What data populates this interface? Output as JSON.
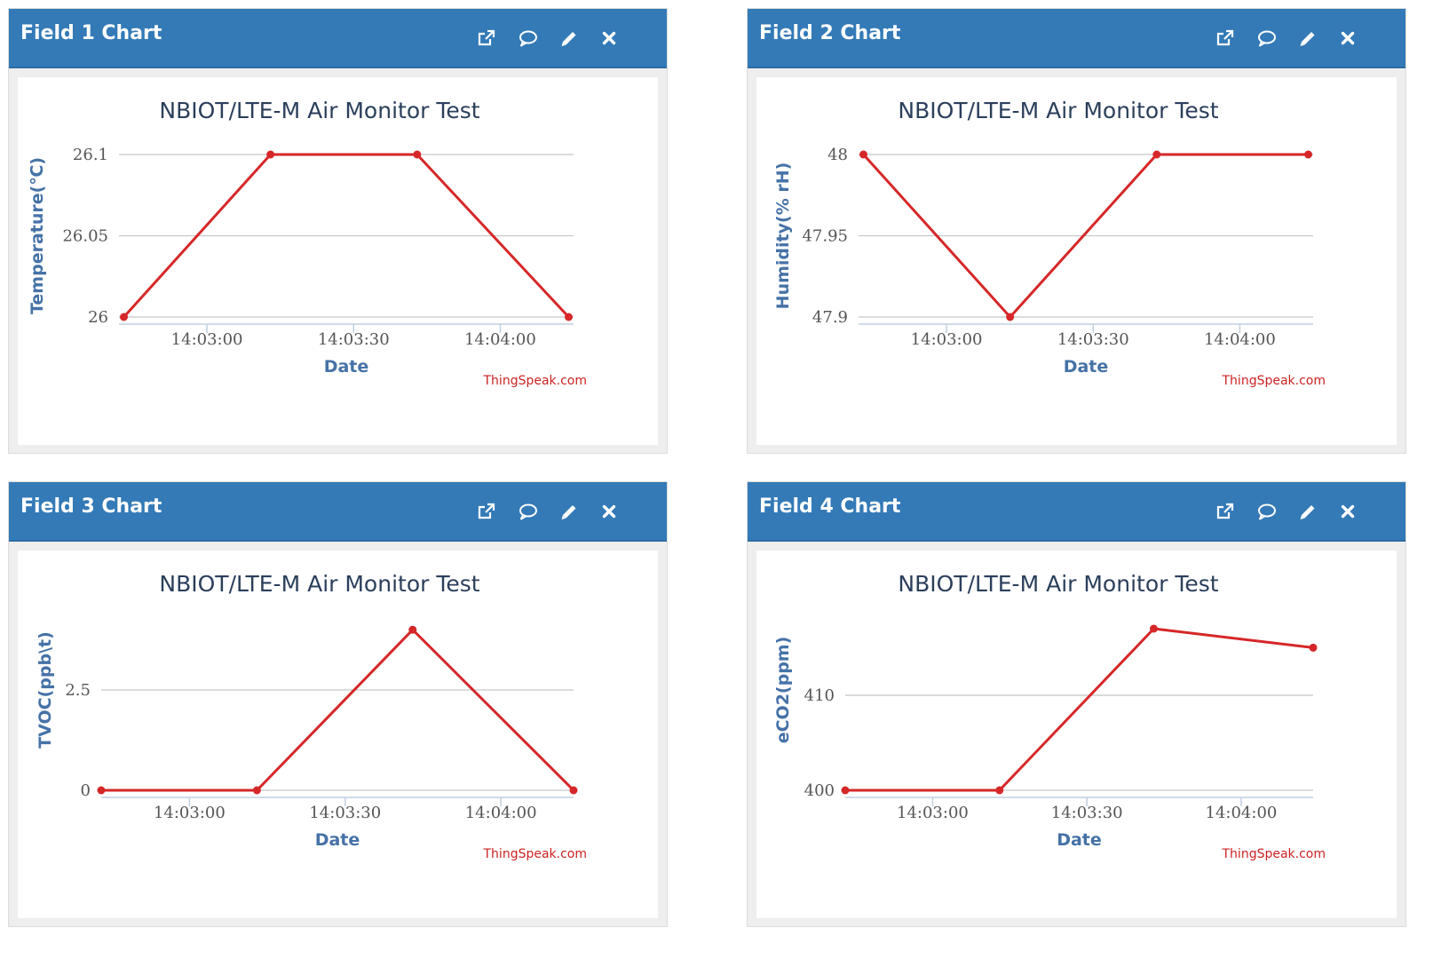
{
  "theme": {
    "header_color": "#337ab7",
    "line_color": "#d62728",
    "label_color": "#4572a7",
    "credits_color": "#cc2222"
  },
  "toolbar_icons": [
    "external-link-icon",
    "comment-icon",
    "pencil-icon",
    "close-icon"
  ],
  "panels": [
    {
      "title": "Field 1 Chart",
      "chart_data": {
        "type": "line",
        "title": "NBIOT/LTE-M Air Monitor Test",
        "xlabel": "Date",
        "ylabel": "Temperature(℃)",
        "credits": "ThingSpeak.com",
        "x_range": [
          "14:02:42",
          "14:04:15"
        ],
        "y_range": [
          26,
          26.1
        ],
        "yticks": [
          {
            "value": 26,
            "label": "26"
          },
          {
            "value": 26.05,
            "label": "26.05"
          },
          {
            "value": 26.1,
            "label": "26.1"
          }
        ],
        "xticks": [
          {
            "value": "14:03:00",
            "label": "14:03:00"
          },
          {
            "value": "14:03:30",
            "label": "14:03:30"
          },
          {
            "value": "14:04:00",
            "label": "14:04:00"
          }
        ],
        "series": [
          {
            "x": [
              "14:02:43",
              "14:03:13",
              "14:03:43",
              "14:04:14"
            ],
            "y": [
              26,
              26.1,
              26.1,
              26
            ]
          }
        ],
        "grid": true,
        "legend": "none"
      }
    },
    {
      "title": "Field 2 Chart",
      "chart_data": {
        "type": "line",
        "title": "NBIOT/LTE-M Air Monitor Test",
        "xlabel": "Date",
        "ylabel": "Humidity(% rH)",
        "credits": "ThingSpeak.com",
        "x_range": [
          "14:02:42",
          "14:04:15"
        ],
        "y_range": [
          47.9,
          48
        ],
        "yticks": [
          {
            "value": 47.9,
            "label": "47.9"
          },
          {
            "value": 47.95,
            "label": "47.95"
          },
          {
            "value": 48,
            "label": "48"
          }
        ],
        "xticks": [
          {
            "value": "14:03:00",
            "label": "14:03:00"
          },
          {
            "value": "14:03:30",
            "label": "14:03:30"
          },
          {
            "value": "14:04:00",
            "label": "14:04:00"
          }
        ],
        "series": [
          {
            "x": [
              "14:02:43",
              "14:03:13",
              "14:03:43",
              "14:04:14"
            ],
            "y": [
              48,
              47.9,
              48,
              48
            ]
          }
        ],
        "grid": true,
        "legend": "none"
      }
    },
    {
      "title": "Field 3 Chart",
      "chart_data": {
        "type": "line",
        "title": "NBIOT/LTE-M Air Monitor Test",
        "xlabel": "Date",
        "ylabel": "TVOC(ppb\\t)",
        "credits": "ThingSpeak.com",
        "x_range": [
          "14:02:43",
          "14:04:14"
        ],
        "y_range": [
          0,
          5
        ],
        "yticks": [
          {
            "value": 0,
            "label": "0"
          },
          {
            "value": 2.5,
            "label": "2.5"
          }
        ],
        "xticks": [
          {
            "value": "14:03:00",
            "label": "14:03:00"
          },
          {
            "value": "14:03:30",
            "label": "14:03:30"
          },
          {
            "value": "14:04:00",
            "label": "14:04:00"
          }
        ],
        "series": [
          {
            "x": [
              "14:02:43",
              "14:03:13",
              "14:03:43",
              "14:04:14"
            ],
            "y": [
              0,
              0,
              4,
              0
            ]
          }
        ],
        "grid": true,
        "legend": "none"
      }
    },
    {
      "title": "Field 4 Chart",
      "chart_data": {
        "type": "line",
        "title": "NBIOT/LTE-M Air Monitor Test",
        "xlabel": "Date",
        "ylabel": "eCO2(ppm)",
        "credits": "ThingSpeak.com",
        "x_range": [
          "14:02:43",
          "14:04:14"
        ],
        "y_range": [
          400,
          417
        ],
        "yticks": [
          {
            "value": 400,
            "label": "400"
          },
          {
            "value": 410,
            "label": "410"
          }
        ],
        "xticks": [
          {
            "value": "14:03:00",
            "label": "14:03:00"
          },
          {
            "value": "14:03:30",
            "label": "14:03:30"
          },
          {
            "value": "14:04:00",
            "label": "14:04:00"
          }
        ],
        "series": [
          {
            "x": [
              "14:02:43",
              "14:03:13",
              "14:03:43",
              "14:04:14"
            ],
            "y": [
              400,
              400,
              417,
              415
            ]
          }
        ],
        "grid": true,
        "legend": "none"
      }
    }
  ]
}
